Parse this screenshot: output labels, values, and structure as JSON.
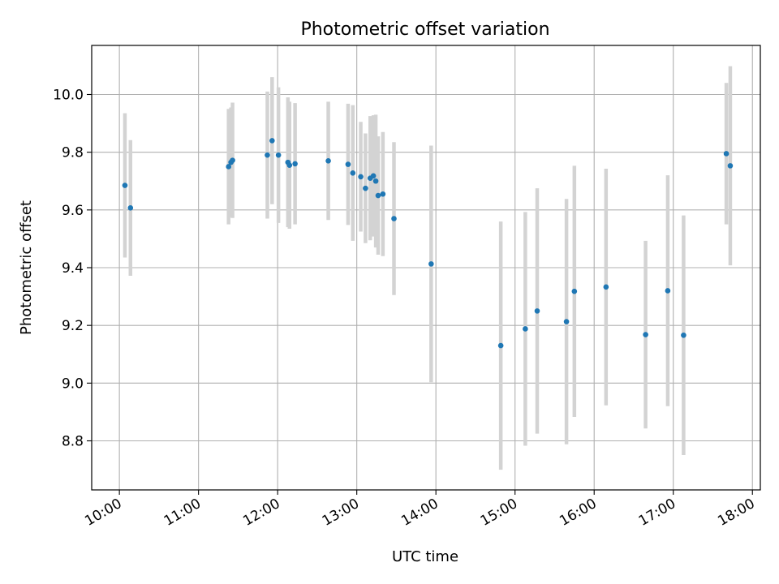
{
  "chart_data": {
    "type": "scatter",
    "title": "Photometric offset variation",
    "xlabel": "UTC time",
    "ylabel": "Photometric offset",
    "x_unit": "hours (UTC)",
    "xlim": [
      9.65,
      18.1
    ],
    "ylim": [
      8.63,
      10.17
    ],
    "x_ticks": [
      {
        "value": 10,
        "label": "10:00"
      },
      {
        "value": 11,
        "label": "11:00"
      },
      {
        "value": 12,
        "label": "12:00"
      },
      {
        "value": 13,
        "label": "13:00"
      },
      {
        "value": 14,
        "label": "14:00"
      },
      {
        "value": 15,
        "label": "15:00"
      },
      {
        "value": 16,
        "label": "16:00"
      },
      {
        "value": 17,
        "label": "17:00"
      },
      {
        "value": 18,
        "label": "18:00"
      }
    ],
    "y_ticks": [
      {
        "value": 8.8,
        "label": "8.8"
      },
      {
        "value": 9.0,
        "label": "9.0"
      },
      {
        "value": 9.2,
        "label": "9.2"
      },
      {
        "value": 9.4,
        "label": "9.4"
      },
      {
        "value": 9.6,
        "label": "9.6"
      },
      {
        "value": 9.8,
        "label": "9.8"
      },
      {
        "value": 10.0,
        "label": "10.0"
      }
    ],
    "grid": true,
    "colors": {
      "marker": "#1f77b4",
      "errorbar": "#d3d3d3",
      "grid": "#b0b0b0"
    },
    "points": [
      {
        "x": 10.07,
        "y": 9.685,
        "err": 0.25
      },
      {
        "x": 10.14,
        "y": 9.607,
        "err": 0.235
      },
      {
        "x": 11.38,
        "y": 9.75,
        "err": 0.2
      },
      {
        "x": 11.41,
        "y": 9.765,
        "err": 0.19
      },
      {
        "x": 11.43,
        "y": 9.772,
        "err": 0.2
      },
      {
        "x": 11.87,
        "y": 9.79,
        "err": 0.22
      },
      {
        "x": 11.93,
        "y": 9.84,
        "err": 0.22
      },
      {
        "x": 12.01,
        "y": 9.79,
        "err": 0.235
      },
      {
        "x": 12.13,
        "y": 9.765,
        "err": 0.225
      },
      {
        "x": 12.15,
        "y": 9.755,
        "err": 0.22
      },
      {
        "x": 12.22,
        "y": 9.76,
        "err": 0.21
      },
      {
        "x": 12.64,
        "y": 9.77,
        "err": 0.205
      },
      {
        "x": 12.89,
        "y": 9.758,
        "err": 0.21
      },
      {
        "x": 12.95,
        "y": 9.728,
        "err": 0.235
      },
      {
        "x": 13.05,
        "y": 9.715,
        "err": 0.19
      },
      {
        "x": 13.11,
        "y": 9.675,
        "err": 0.19
      },
      {
        "x": 13.17,
        "y": 9.71,
        "err": 0.215
      },
      {
        "x": 13.21,
        "y": 9.718,
        "err": 0.21
      },
      {
        "x": 13.24,
        "y": 9.7,
        "err": 0.23
      },
      {
        "x": 13.27,
        "y": 9.65,
        "err": 0.205
      },
      {
        "x": 13.33,
        "y": 9.655,
        "err": 0.215
      },
      {
        "x": 13.47,
        "y": 9.57,
        "err": 0.265
      },
      {
        "x": 13.94,
        "y": 9.413,
        "err": 0.41
      },
      {
        "x": 14.82,
        "y": 9.13,
        "err": 0.43
      },
      {
        "x": 15.13,
        "y": 9.188,
        "err": 0.405
      },
      {
        "x": 15.28,
        "y": 9.25,
        "err": 0.425
      },
      {
        "x": 15.65,
        "y": 9.213,
        "err": 0.425
      },
      {
        "x": 15.75,
        "y": 9.318,
        "err": 0.435
      },
      {
        "x": 16.15,
        "y": 9.333,
        "err": 0.41
      },
      {
        "x": 16.65,
        "y": 9.168,
        "err": 0.325
      },
      {
        "x": 16.93,
        "y": 9.32,
        "err": 0.4
      },
      {
        "x": 17.13,
        "y": 9.166,
        "err": 0.415
      },
      {
        "x": 17.67,
        "y": 9.795,
        "err": 0.245
      },
      {
        "x": 17.72,
        "y": 9.753,
        "err": 0.345
      }
    ]
  }
}
